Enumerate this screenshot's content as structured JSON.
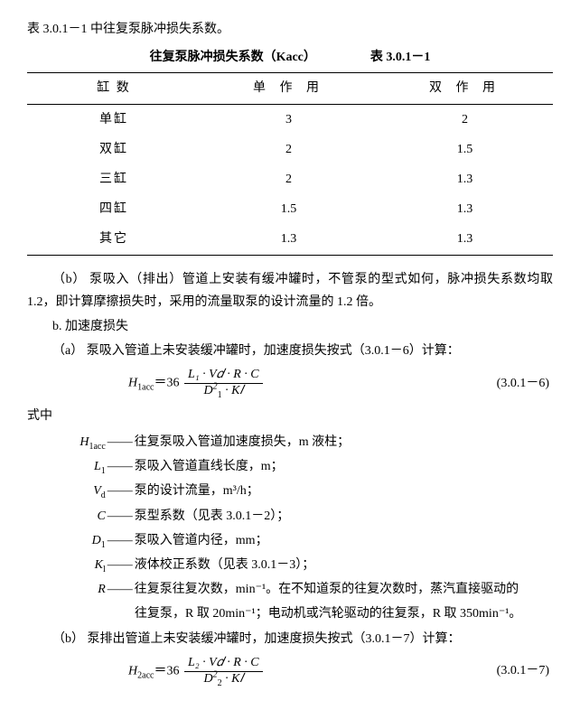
{
  "intro": "表 3.0.1－1 中往复泵脉冲损失系数。",
  "table": {
    "title_left": "往复泵脉冲损失系数（Kacc）",
    "title_right": "表 3.0.1－1",
    "headers": [
      "缸    数",
      "单 作 用",
      "双 作 用"
    ],
    "rows": [
      [
        "单缸",
        "3",
        "2"
      ],
      [
        "双缸",
        "2",
        "1.5"
      ],
      [
        "三缸",
        "2",
        "1.3"
      ],
      [
        "四缸",
        "1.5",
        "1.3"
      ],
      [
        "其它",
        "1.3",
        "1.3"
      ]
    ]
  },
  "p_b": "（b）  泵吸入（排出）管道上安装有缓冲罐时，不管泵的型式如何，脉冲损失系数均取 1.2，即计算摩擦损失时，采用的流量取泵的设计流量的 1.2 倍。",
  "p_b2": "b. 加速度损失",
  "p_a": "（a）  泵吸入管道上未安装缓冲罐时，加速度损失按式（3.0.1－6）计算：",
  "eq1": {
    "lhs": "H",
    "lhs_sub": "1acc",
    "coef": "＝36",
    "num": "L₁ · V𝑑 · R · C",
    "den_a": "D",
    "den_a_sup": "2",
    "den_a_sub": "1",
    "den_b": " · K𝑙",
    "num_label": "(3.0.1－6)"
  },
  "where_label": "式中",
  "defs": [
    {
      "sym": "H",
      "sub": "1acc",
      "desc": "往复泵吸入管道加速度损失，m 液柱；"
    },
    {
      "sym": "L",
      "sub": "1",
      "desc": "泵吸入管道直线长度，m；"
    },
    {
      "sym": "V",
      "sub": "d",
      "desc": "泵的设计流量，m³/h；"
    },
    {
      "sym": "C",
      "sub": "",
      "desc": "泵型系数（见表 3.0.1－2）；"
    },
    {
      "sym": "D",
      "sub": "1",
      "desc": "泵吸入管道内径，mm；"
    },
    {
      "sym": "K",
      "sub": "l",
      "desc": "液体校正系数（见表 3.0.1－3）；"
    },
    {
      "sym": "R",
      "sub": "",
      "desc": "往复泵往复次数，min⁻¹。在不知道泵的往复次数时，蒸汽直接驱动的"
    }
  ],
  "def_cont": "往复泵，R 取 20min⁻¹；电动机或汽轮驱动的往复泵，R 取 350min⁻¹。",
  "p_b3": "（b）  泵排出管道上未安装缓冲罐时，加速度损失按式（3.0.1－7）计算：",
  "eq2": {
    "lhs": "H",
    "lhs_sub": "2acc",
    "coef": "＝36",
    "num": "L₂ · V𝑑 · R · C",
    "den_a": "D",
    "den_a_sup": "2",
    "den_a_sub": "2",
    "den_b": " · K𝑙",
    "num_label": "(3.0.1－7)"
  }
}
